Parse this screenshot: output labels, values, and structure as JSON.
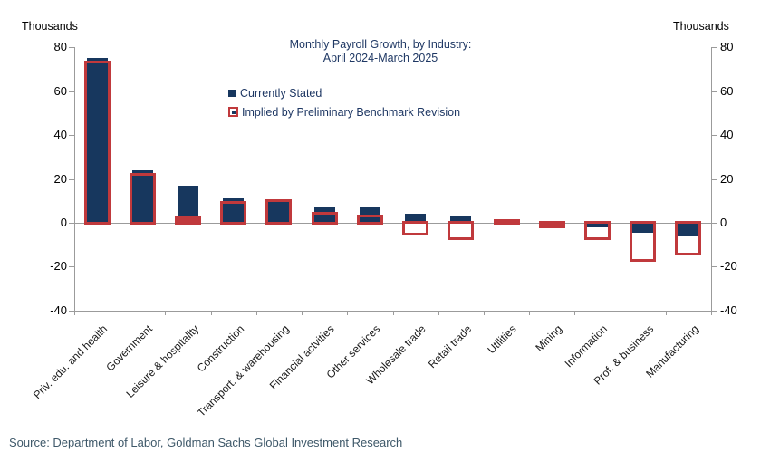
{
  "axis_titles": {
    "left": "Thousands",
    "right": "Thousands"
  },
  "chart_data": {
    "type": "bar",
    "title": "Monthly Payroll Growth, by Industry:",
    "subtitle": "April 2024-March 2025",
    "ylabel": "Thousands",
    "ylim": [
      -40,
      80
    ],
    "yticks": [
      80,
      60,
      40,
      20,
      0,
      -20,
      -40
    ],
    "grid": false,
    "legend_position": "top-center-left",
    "categories": [
      "Priv. edu. and health",
      "Government",
      "Leisure & hospitality",
      "Construction",
      "Transport. & warehousing",
      "Financial actvities",
      "Other services",
      "Wholesale trade",
      "Retail trade",
      "Utilities",
      "Mining",
      "Information",
      "Prof. & business",
      "Manufacturing"
    ],
    "series": [
      {
        "name": "Currently Stated",
        "style": "filled",
        "color": "#17375E",
        "values": [
          75,
          24,
          17,
          11,
          9.5,
          7,
          7,
          4,
          3.5,
          0.5,
          -0.5,
          -2,
          -4.5,
          -6
        ]
      },
      {
        "name": "Implied by Preliminary Benchmark Revision",
        "style": "outline",
        "color": "#C0393C",
        "values": [
          73,
          22,
          2.5,
          9,
          10,
          4,
          3,
          -5,
          -7,
          1,
          -1.5,
          -7,
          -17,
          -14
        ]
      }
    ]
  },
  "footer": {
    "source": "Source: Department of Labor, Goldman Sachs Global Investment Research"
  },
  "colors": {
    "navy": "#17375E",
    "red": "#C0393C",
    "axis": "#9B9B9B",
    "title_text": "#1F3864",
    "tick_text": "#000000",
    "source_text": "#3E5869"
  }
}
